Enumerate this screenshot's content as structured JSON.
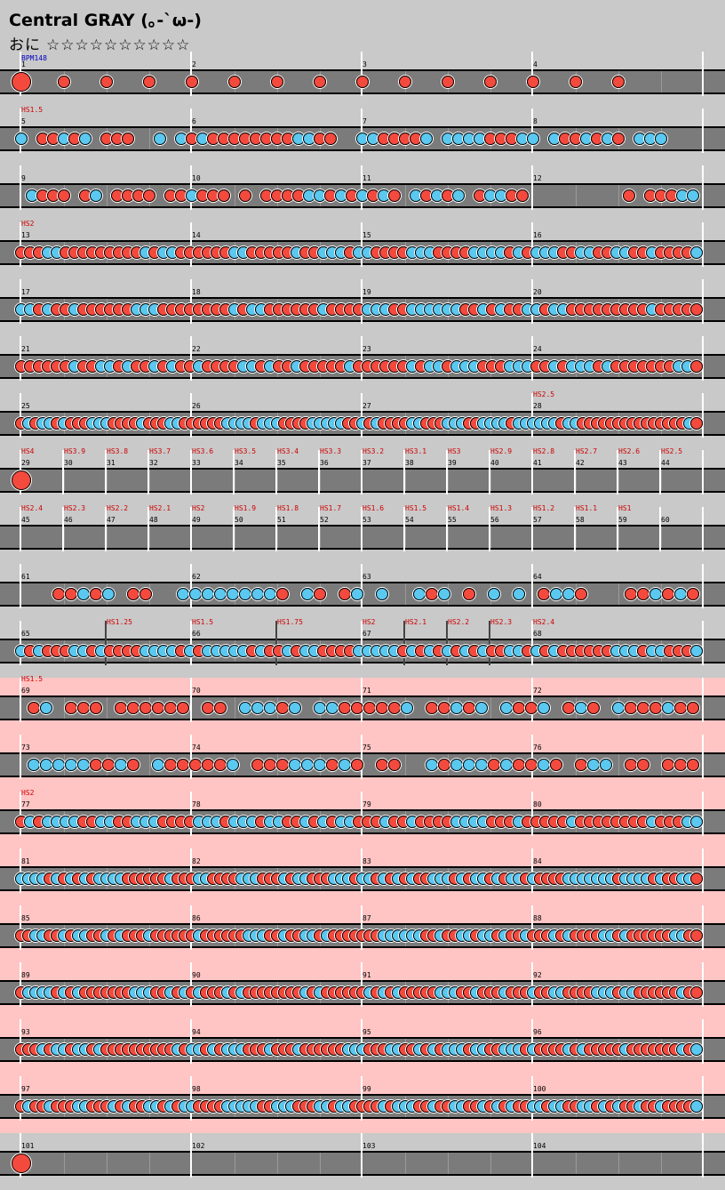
{
  "header": {
    "title": "Central GRAY (｡-`ω-)",
    "difficulty_label": "おに",
    "stars": "☆☆☆☆☆☆☆☆☆☆"
  },
  "colors": {
    "don": "#f44a3e",
    "ka": "#5bc8f0",
    "lane": "#7b7b7b",
    "gogo": "#ffc4c4"
  },
  "rows": [
    {
      "measures": [
        "1",
        "2",
        "3",
        "4"
      ],
      "bpm": "BPM148",
      "hs": [],
      "pattern": "start",
      "gogo": false
    },
    {
      "measures": [
        "5",
        "6",
        "7",
        "8"
      ],
      "hs": [
        "HS1.5"
      ],
      "pattern": "mix",
      "gogo": false
    },
    {
      "measures": [
        "9",
        "10",
        "11",
        "12"
      ],
      "hs": [],
      "pattern": "mix-gap",
      "gogo": false
    },
    {
      "measures": [
        "13",
        "14",
        "15",
        "16"
      ],
      "hs": [
        "HS2"
      ],
      "pattern": "dense",
      "gogo": false
    },
    {
      "measures": [
        "17",
        "18",
        "19",
        "20"
      ],
      "hs": [],
      "pattern": "dense",
      "gogo": false
    },
    {
      "measures": [
        "21",
        "22",
        "23",
        "24"
      ],
      "hs": [],
      "pattern": "dense",
      "gogo": false
    },
    {
      "measures": [
        "25",
        "26",
        "27",
        "28"
      ],
      "hs": [
        "HS2.5"
      ],
      "pattern": "verydense",
      "gogo": false
    },
    {
      "measures": [
        "29",
        "30",
        "31",
        "32",
        "33",
        "34",
        "35",
        "36",
        "37",
        "38",
        "39",
        "40",
        "41",
        "42",
        "43",
        "44"
      ],
      "hs": [
        "HS4",
        "HS3.9",
        "HS3.8",
        "HS3.7",
        "HS3.6",
        "HS3.5",
        "HS3.4",
        "HS3.3",
        "HS3.2",
        "HS3.1",
        "HS3",
        "HS2.9",
        "HS2.8",
        "HS2.7",
        "HS2.6",
        "HS2.5"
      ],
      "pattern": "single",
      "gogo": false
    },
    {
      "measures": [
        "45",
        "46",
        "47",
        "48",
        "49",
        "50",
        "51",
        "52",
        "53",
        "54",
        "55",
        "56",
        "57",
        "58",
        "59",
        "60"
      ],
      "hs": [
        "HS2.4",
        "HS2.3",
        "HS2.2",
        "HS2.1",
        "HS2",
        "HS1.9",
        "HS1.8",
        "HS1.7",
        "HS1.6",
        "HS1.5",
        "HS1.4",
        "HS1.3",
        "HS1.2",
        "HS1.1",
        "HS1",
        ""
      ],
      "pattern": "empty",
      "gogo": false
    },
    {
      "measures": [
        "61",
        "62",
        "63",
        "64"
      ],
      "hs": [],
      "pattern": "sparse",
      "gogo": false
    },
    {
      "measures": [
        "65",
        "66",
        "67",
        "68"
      ],
      "hs": [
        "HS1.25",
        "HS1.5",
        "HS1.75",
        "HS2",
        "HS2.1",
        "HS2.2",
        "HS2.3",
        "HS2.4"
      ],
      "pattern": "dense",
      "gogo": false
    },
    {
      "measures": [
        "69",
        "70",
        "71",
        "72"
      ],
      "hs": [
        "HS1.5"
      ],
      "pattern": "sparse",
      "gogo": true
    },
    {
      "measures": [
        "73",
        "74",
        "75",
        "76"
      ],
      "hs": [],
      "pattern": "sparse",
      "gogo": true
    },
    {
      "measures": [
        "77",
        "78",
        "79",
        "80"
      ],
      "hs": [
        "HS2"
      ],
      "pattern": "dense",
      "gogo": true
    },
    {
      "measures": [
        "81",
        "82",
        "83",
        "84"
      ],
      "hs": [],
      "pattern": "verydense",
      "gogo": true
    },
    {
      "measures": [
        "85",
        "86",
        "87",
        "88"
      ],
      "hs": [],
      "pattern": "verydense",
      "gogo": true
    },
    {
      "measures": [
        "89",
        "90",
        "91",
        "92"
      ],
      "hs": [],
      "pattern": "verydense",
      "gogo": true
    },
    {
      "measures": [
        "93",
        "94",
        "95",
        "96"
      ],
      "hs": [],
      "pattern": "verydense",
      "gogo": true
    },
    {
      "measures": [
        "97",
        "98",
        "99",
        "100"
      ],
      "hs": [],
      "pattern": "verydense",
      "gogo": true
    },
    {
      "measures": [
        "101",
        "102",
        "103",
        "104"
      ],
      "hs": [],
      "pattern": "end",
      "gogo": false
    }
  ]
}
